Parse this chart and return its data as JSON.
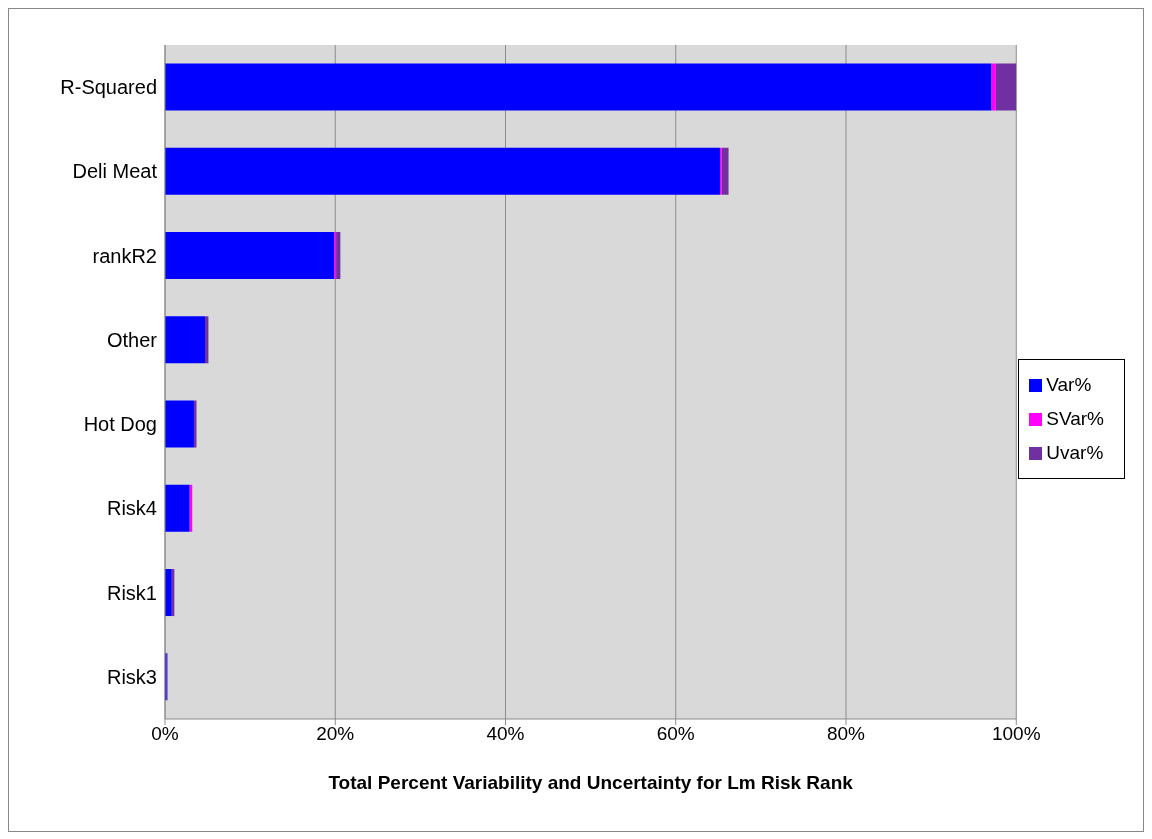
{
  "chart_data": {
    "type": "bar",
    "orientation": "horizontal",
    "stacked": true,
    "xlabel": "Total Percent Variability and Uncertainty for Lm Risk Rank",
    "categories": [
      "R-Squared",
      "Deli Meat",
      "rankR2",
      "Other",
      "Hot Dog",
      "Risk4",
      "Risk1",
      "Risk3"
    ],
    "series": [
      {
        "name": "Var%",
        "color": "#0000ff",
        "values": [
          97.1,
          65.2,
          19.9,
          4.7,
          3.4,
          2.9,
          0.8,
          0.2
        ]
      },
      {
        "name": "SVar%",
        "color": "#ff00ff",
        "values": [
          0.5,
          0.2,
          0.2,
          0,
          0,
          0.3,
          0,
          0
        ]
      },
      {
        "name": "Uvar%",
        "color": "#7030a0",
        "values": [
          2.4,
          0.8,
          0.5,
          0.4,
          0.3,
          0,
          0.3,
          0.1
        ]
      }
    ],
    "xlim": [
      0,
      100
    ],
    "xticks": [
      {
        "value": 0,
        "label": "0%"
      },
      {
        "value": 20,
        "label": "20%"
      },
      {
        "value": 40,
        "label": "40%"
      },
      {
        "value": 60,
        "label": "60%"
      },
      {
        "value": 80,
        "label": "80%"
      },
      {
        "value": 100,
        "label": "100%"
      }
    ],
    "grid": "x",
    "legend": "right"
  }
}
